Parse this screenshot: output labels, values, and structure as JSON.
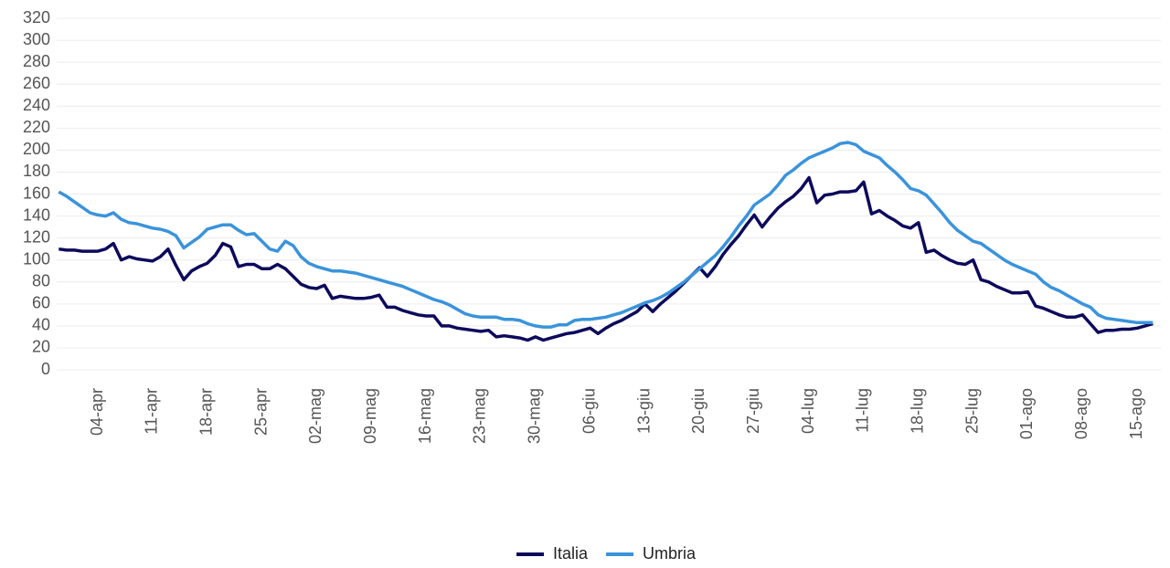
{
  "chart_data": {
    "type": "line",
    "categories": [
      null,
      null,
      null,
      null,
      null,
      "04-apr",
      null,
      null,
      null,
      null,
      null,
      null,
      "11-apr",
      null,
      null,
      null,
      null,
      null,
      null,
      "18-apr",
      null,
      null,
      null,
      null,
      null,
      null,
      "25-apr",
      null,
      null,
      null,
      null,
      null,
      null,
      "02-mag",
      null,
      null,
      null,
      null,
      null,
      null,
      "09-mag",
      null,
      null,
      null,
      null,
      null,
      null,
      "16-mag",
      null,
      null,
      null,
      null,
      null,
      null,
      "23-mag",
      null,
      null,
      null,
      null,
      null,
      null,
      "30-mag",
      null,
      null,
      null,
      null,
      null,
      null,
      "06-giu",
      null,
      null,
      null,
      null,
      null,
      null,
      "13-giu",
      null,
      null,
      null,
      null,
      null,
      null,
      "20-giu",
      null,
      null,
      null,
      null,
      null,
      null,
      "27-giu",
      null,
      null,
      null,
      null,
      null,
      null,
      "04-lug",
      null,
      null,
      null,
      null,
      null,
      null,
      "11-lug",
      null,
      null,
      null,
      null,
      null,
      null,
      "18-lug",
      null,
      null,
      null,
      null,
      null,
      null,
      "25-lug",
      null,
      null,
      null,
      null,
      null,
      null,
      "01-ago",
      null,
      null,
      null,
      null,
      null,
      null,
      "08-ago",
      null,
      null,
      null,
      null,
      null,
      null,
      "15-ago",
      null,
      null
    ],
    "series": [
      {
        "name": "Italia",
        "color": "#0d0a5c",
        "values": [
          110,
          109,
          109,
          108,
          108,
          108,
          110,
          115,
          100,
          103,
          101,
          100,
          99,
          103,
          110,
          95,
          82,
          90,
          94,
          97,
          104,
          115,
          112,
          94,
          96,
          96,
          92,
          92,
          96,
          92,
          85,
          78,
          75,
          74,
          77,
          65,
          67,
          66,
          65,
          65,
          66,
          68,
          57,
          57,
          54,
          52,
          50,
          49,
          49,
          40,
          40,
          38,
          37,
          36,
          35,
          36,
          30,
          31,
          30,
          29,
          27,
          30,
          27,
          29,
          31,
          33,
          34,
          36,
          38,
          33,
          38,
          42,
          45,
          49,
          53,
          60,
          53,
          60,
          66,
          72,
          79,
          86,
          93,
          85,
          94,
          105,
          114,
          122,
          132,
          141,
          130,
          139,
          147,
          153,
          158,
          165,
          175,
          152,
          159,
          160,
          162,
          162,
          163,
          171,
          142,
          145,
          140,
          136,
          131,
          129,
          134,
          107,
          109,
          104,
          100,
          97,
          96,
          100,
          82,
          80,
          76,
          73,
          70,
          70,
          71,
          58,
          56,
          53,
          50,
          48,
          48,
          50,
          42,
          34,
          36,
          36,
          37,
          37,
          38,
          40,
          42
        ]
      },
      {
        "name": "Umbria",
        "color": "#3a93dc",
        "values": [
          162,
          158,
          153,
          148,
          143,
          141,
          140,
          143,
          137,
          134,
          133,
          131,
          129,
          128,
          126,
          122,
          111,
          116,
          121,
          128,
          130,
          132,
          132,
          127,
          123,
          124,
          117,
          110,
          108,
          117,
          113,
          103,
          97,
          94,
          92,
          90,
          90,
          89,
          88,
          86,
          84,
          82,
          80,
          78,
          76,
          73,
          70,
          67,
          64,
          62,
          59,
          55,
          51,
          49,
          48,
          48,
          48,
          46,
          46,
          45,
          42,
          40,
          39,
          39,
          41,
          41,
          45,
          46,
          46,
          47,
          48,
          50,
          52,
          55,
          58,
          61,
          63,
          66,
          70,
          75,
          80,
          86,
          92,
          98,
          104,
          112,
          121,
          131,
          140,
          150,
          155,
          160,
          168,
          177,
          182,
          188,
          193,
          196,
          199,
          202,
          206,
          207,
          205,
          199,
          196,
          193,
          186,
          180,
          173,
          165,
          163,
          159,
          151,
          143,
          134,
          127,
          122,
          117,
          115,
          110,
          105,
          100,
          96,
          93,
          90,
          87,
          80,
          75,
          72,
          68,
          64,
          60,
          57,
          50,
          47,
          46,
          45,
          44,
          43,
          43,
          43
        ]
      }
    ],
    "ylim": [
      0,
      320
    ],
    "yticks": [
      0,
      20,
      40,
      60,
      80,
      100,
      120,
      140,
      160,
      180,
      200,
      220,
      240,
      260,
      280,
      300,
      320
    ],
    "grid": true,
    "legend": "bottom"
  }
}
